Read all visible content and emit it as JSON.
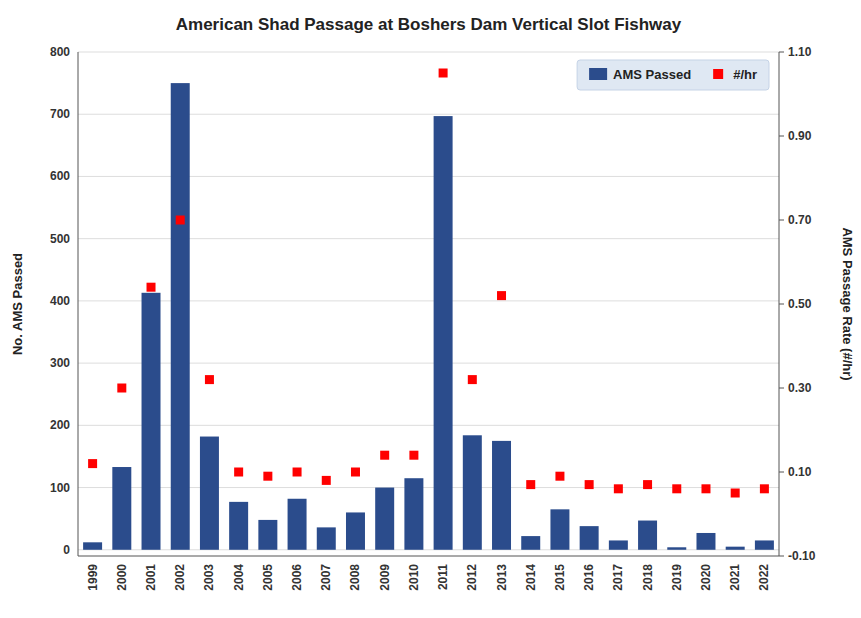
{
  "chart_data": {
    "type": "bar",
    "title": "American Shad Passage at Boshers Dam Vertical Slot Fishway",
    "categories": [
      "1999",
      "2000",
      "2001",
      "2002",
      "2003",
      "2004",
      "2005",
      "2006",
      "2007",
      "2008",
      "2009",
      "2010",
      "2011",
      "2012",
      "2013",
      "2014",
      "2015",
      "2016",
      "2017",
      "2018",
      "2019",
      "2020",
      "2021",
      "2022"
    ],
    "series": [
      {
        "name": "AMS Passed",
        "type": "bar",
        "color": "#2B4C8C",
        "values": [
          12,
          133,
          413,
          750,
          182,
          77,
          48,
          82,
          36,
          60,
          100,
          115,
          697,
          184,
          175,
          22,
          65,
          38,
          15,
          47,
          4,
          27,
          5,
          15
        ]
      },
      {
        "name": "#/hr",
        "type": "scatter",
        "marker": "square",
        "color": "#FF0000",
        "axis": "y2",
        "values": [
          0.12,
          0.3,
          0.54,
          0.7,
          0.32,
          0.1,
          0.09,
          0.1,
          0.08,
          0.1,
          0.14,
          0.14,
          1.05,
          0.32,
          0.52,
          0.07,
          0.09,
          0.07,
          0.06,
          0.07,
          0.06,
          0.06,
          0.05,
          0.06
        ]
      }
    ],
    "ylabel": "No. AMS Passed",
    "y2label": "AMS Passage Rate (#/hr)",
    "ylim": [
      -10,
      800
    ],
    "yticks": [
      0,
      100,
      200,
      300,
      400,
      500,
      600,
      700,
      800
    ],
    "y2lim": [
      -0.1,
      1.1
    ],
    "y2ticks": [
      {
        "value": -0.1,
        "label": "-0.10"
      },
      {
        "value": 0.1,
        "label": "0.10"
      },
      {
        "value": 0.3,
        "label": "0.30"
      },
      {
        "value": 0.5,
        "label": "0.50"
      },
      {
        "value": 0.7,
        "label": "0.70"
      },
      {
        "value": 0.9,
        "label": "0.90"
      },
      {
        "value": 1.1,
        "label": "1.10"
      }
    ],
    "grid": true,
    "legend": "upper right"
  }
}
